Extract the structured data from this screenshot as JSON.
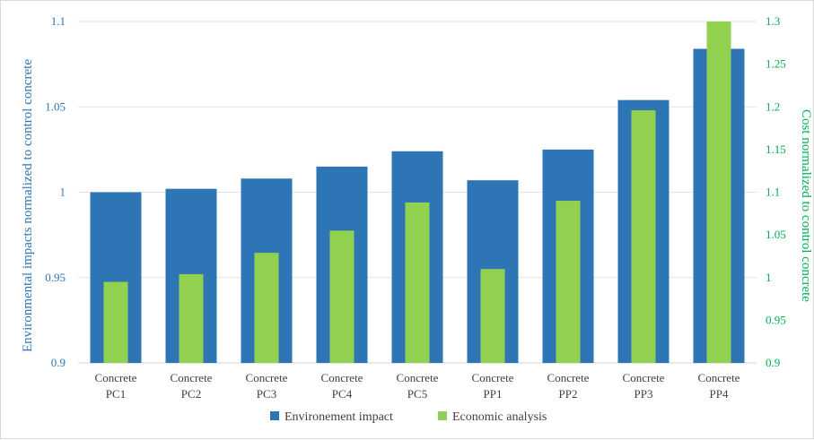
{
  "chart_data": {
    "type": "bar",
    "categories": [
      [
        "Concrete",
        "PC1"
      ],
      [
        "Concrete",
        "PC2"
      ],
      [
        "Concrete",
        "PC3"
      ],
      [
        "Concrete",
        "PC4"
      ],
      [
        "Concrete",
        "PC5"
      ],
      [
        "Concrete",
        "PP1"
      ],
      [
        "Concrete",
        "PP2"
      ],
      [
        "Concrete",
        "PP3"
      ],
      [
        "Concrete",
        "PP4"
      ]
    ],
    "series": [
      {
        "name": "Environement impact",
        "axis": "left",
        "color": "#2e75b6",
        "values": [
          1.0,
          1.002,
          1.008,
          1.015,
          1.024,
          1.007,
          1.025,
          1.054,
          1.084
        ]
      },
      {
        "name": "Economic analysis",
        "axis": "right",
        "color": "#92d050",
        "values": [
          0.995,
          1.004,
          1.029,
          1.055,
          1.088,
          1.01,
          1.09,
          1.196,
          1.3
        ]
      }
    ],
    "ylabel": "Environmental impacts normalized to control concrete",
    "ylabel_right": "Cost normalized to control concrete",
    "ylim": [
      0.9,
      1.1
    ],
    "ylim_right": [
      0.9,
      1.3
    ],
    "yticks": [
      "0.9",
      "0.95",
      "1",
      "1.05",
      "1.1"
    ],
    "yticks_right": [
      "0.9",
      "0.95",
      "1",
      "1.05",
      "1.1",
      "1.15",
      "1.2",
      "1.25",
      "1.3"
    ],
    "left_axis_color": "#2e75b6",
    "right_axis_color": "#00b050",
    "grid": true,
    "legend_position": "bottom"
  }
}
